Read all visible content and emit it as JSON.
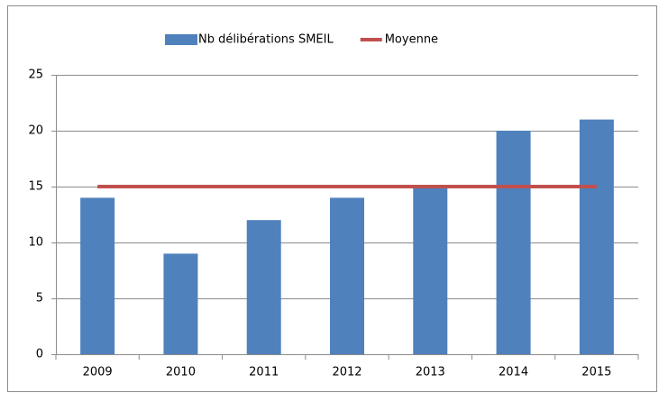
{
  "chart_data": {
    "type": "bar",
    "categories": [
      "2009",
      "2010",
      "2011",
      "2012",
      "2013",
      "2014",
      "2015"
    ],
    "series": [
      {
        "name": "Nb délibérations SMEIL",
        "color": "#4f81bd",
        "type": "bar",
        "values": [
          14,
          9,
          12,
          14,
          15,
          20,
          21
        ]
      },
      {
        "name": "Moyenne",
        "color": "#c0504d",
        "type": "line",
        "values": [
          15,
          15,
          15,
          15,
          15,
          15,
          15
        ]
      }
    ],
    "ylim": [
      0,
      25
    ],
    "yticks": [
      0,
      5,
      10,
      15,
      20,
      25
    ],
    "grid": true,
    "legend": "top"
  }
}
